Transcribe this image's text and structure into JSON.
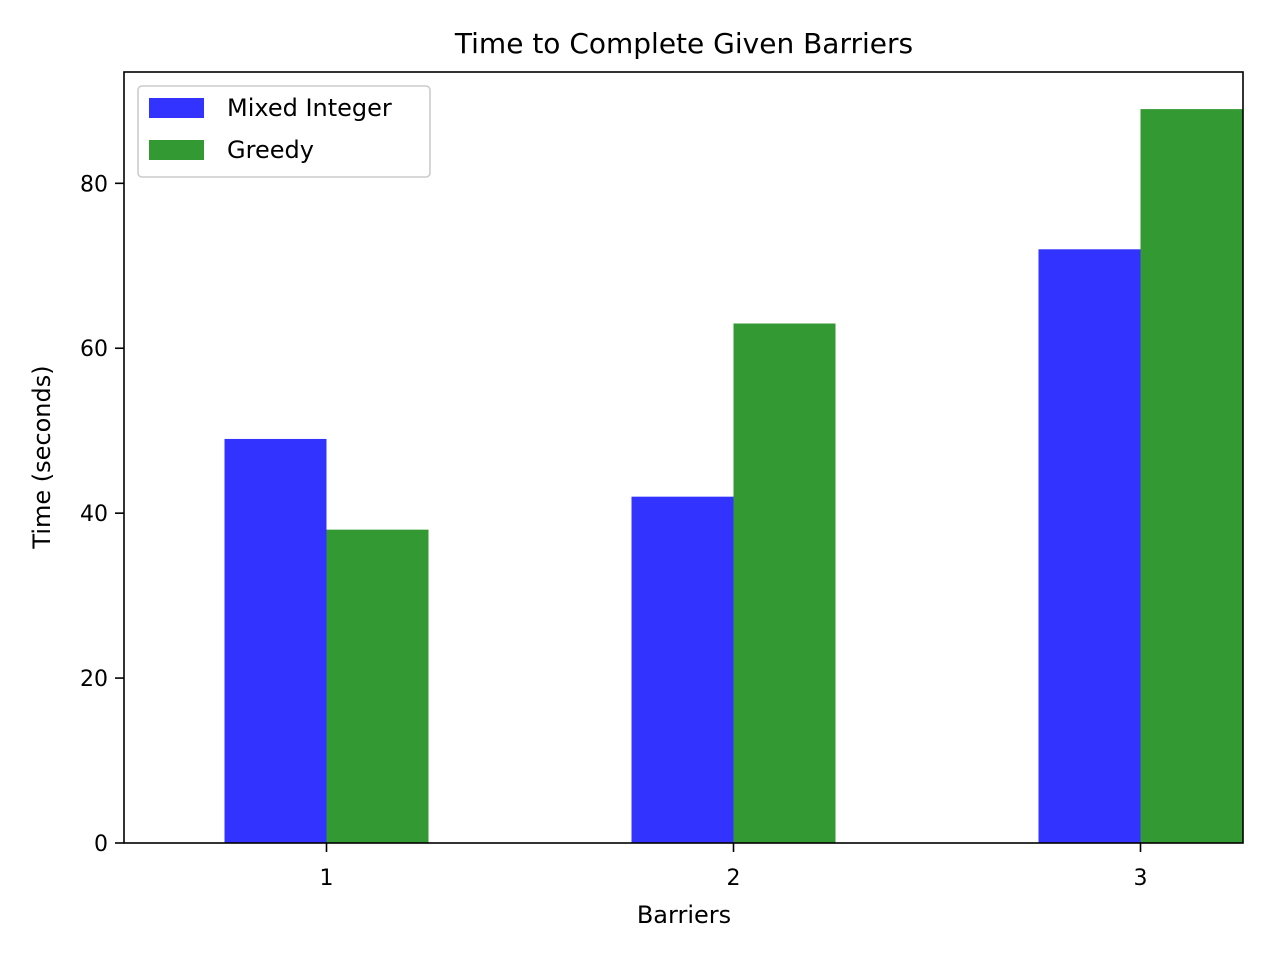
{
  "chart_data": {
    "type": "bar",
    "title": "Time to Complete Given Barriers",
    "xlabel": "Barriers",
    "ylabel": "Time (seconds)",
    "categories": [
      "1",
      "2",
      "3"
    ],
    "series": [
      {
        "name": "Mixed Integer",
        "values": [
          49,
          42,
          72
        ],
        "color": "#3333ff"
      },
      {
        "name": "Greedy",
        "values": [
          38,
          63,
          89
        ],
        "color": "#339933"
      }
    ],
    "ylim": [
      0,
      93.5
    ],
    "yticks": [
      0,
      20,
      40,
      60,
      80
    ],
    "grid": false,
    "legend_position": "top-left"
  }
}
